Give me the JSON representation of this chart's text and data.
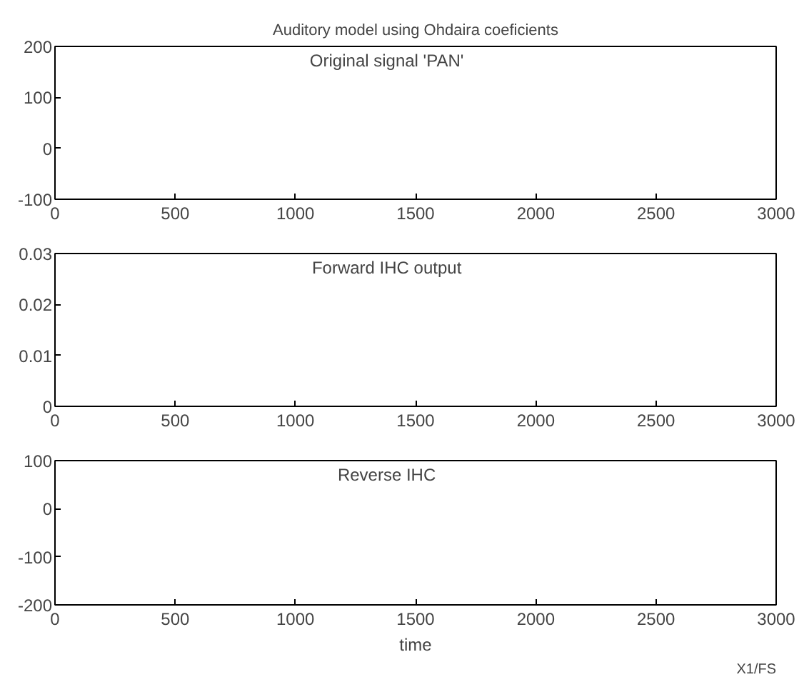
{
  "chart_data": [
    {
      "type": "line",
      "title": "Auditory model using Ohdaira coeficients",
      "annotations": [
        "Original signal 'PAN'"
      ],
      "xlim": [
        0,
        3000
      ],
      "xticks": [
        0,
        500,
        1000,
        1500,
        2000,
        2500,
        3000
      ],
      "ylim": [
        -100,
        200
      ],
      "yticks": [
        -100,
        0,
        100,
        200
      ]
    },
    {
      "type": "line",
      "annotations": [
        "Forward IHC output"
      ],
      "xlim": [
        0,
        3000
      ],
      "xticks": [
        0,
        500,
        1000,
        1500,
        2000,
        2500,
        3000
      ],
      "ylim": [
        0,
        0.03
      ],
      "yticks": [
        0,
        0.01,
        0.02,
        0.03
      ]
    },
    {
      "type": "line",
      "xlabel": "time",
      "annotations": [
        "Reverse IHC",
        "X1/FS"
      ],
      "xlim": [
        0,
        3000
      ],
      "xticks": [
        0,
        500,
        1000,
        1500,
        2000,
        2500,
        3000
      ],
      "ylim": [
        -200,
        100
      ],
      "yticks": [
        -200,
        -100,
        0,
        100
      ]
    }
  ]
}
